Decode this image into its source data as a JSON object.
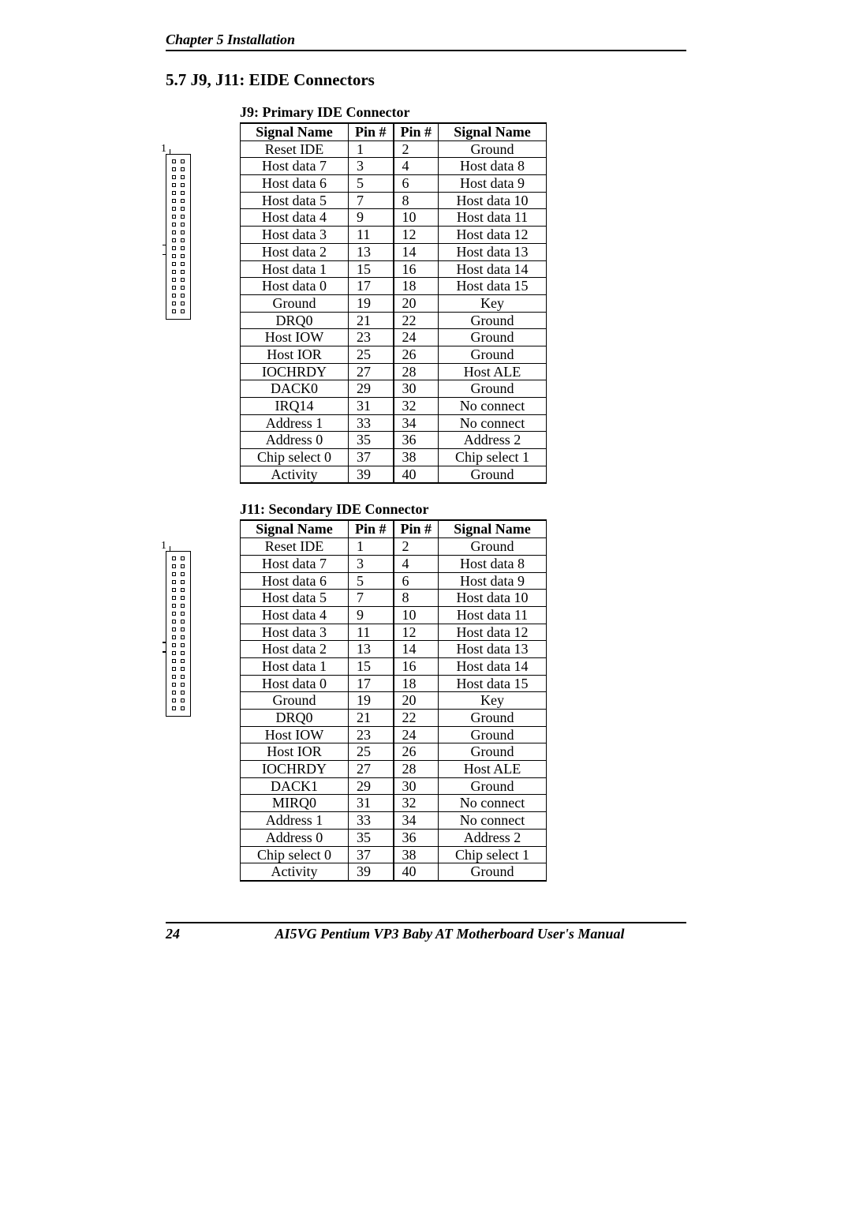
{
  "chapter_header": "Chapter 5  Installation",
  "section_title": "5.7  J9, J11: EIDE Connectors",
  "page_number": "24",
  "footer_title": "AI5VG Pentium VP3 Baby AT Motherboard User's Manual",
  "tables": {
    "j9": {
      "title": "J9: Primary IDE Connector",
      "headers": [
        "Signal Name",
        "Pin #",
        "Pin #",
        "Signal Name"
      ],
      "pin1_label": "1",
      "rows": [
        [
          "Reset IDE",
          "1",
          "2",
          "Ground"
        ],
        [
          "Host data 7",
          "3",
          "4",
          "Host data 8"
        ],
        [
          "Host data 6",
          "5",
          "6",
          "Host data 9"
        ],
        [
          "Host data 5",
          "7",
          "8",
          "Host data 10"
        ],
        [
          "Host data 4",
          "9",
          "10",
          "Host data 11"
        ],
        [
          "Host data 3",
          "11",
          "12",
          "Host data 12"
        ],
        [
          "Host data 2",
          "13",
          "14",
          "Host data 13"
        ],
        [
          "Host data 1",
          "15",
          "16",
          "Host data 14"
        ],
        [
          "Host data 0",
          "17",
          "18",
          "Host data 15"
        ],
        [
          "Ground",
          "19",
          "20",
          "Key"
        ],
        [
          "DRQ0",
          "21",
          "22",
          "Ground"
        ],
        [
          "Host IOW",
          "23",
          "24",
          "Ground"
        ],
        [
          "Host IOR",
          "25",
          "26",
          "Ground"
        ],
        [
          "IOCHRDY",
          "27",
          "28",
          "Host ALE"
        ],
        [
          "DACK0",
          "29",
          "30",
          "Ground"
        ],
        [
          "IRQ14",
          "31",
          "32",
          "No connect"
        ],
        [
          "Address 1",
          "33",
          "34",
          "No connect"
        ],
        [
          "Address 0",
          "35",
          "36",
          "Address 2"
        ],
        [
          "Chip select 0",
          "37",
          "38",
          "Chip select 1"
        ],
        [
          "Activity",
          "39",
          "40",
          "Ground"
        ]
      ]
    },
    "j11": {
      "title": "J11: Secondary IDE Connector",
      "headers": [
        "Signal Name",
        "Pin #",
        "Pin #",
        "Signal Name"
      ],
      "pin1_label": "1",
      "rows": [
        [
          "Reset IDE",
          "1",
          "2",
          "Ground"
        ],
        [
          "Host data 7",
          "3",
          "4",
          "Host data 8"
        ],
        [
          "Host data 6",
          "5",
          "6",
          "Host data 9"
        ],
        [
          "Host data 5",
          "7",
          "8",
          "Host data 10"
        ],
        [
          "Host data 4",
          "9",
          "10",
          "Host data 11"
        ],
        [
          "Host data 3",
          "11",
          "12",
          "Host data 12"
        ],
        [
          "Host data 2",
          "13",
          "14",
          "Host data 13"
        ],
        [
          "Host data 1",
          "15",
          "16",
          "Host data 14"
        ],
        [
          "Host data 0",
          "17",
          "18",
          "Host data 15"
        ],
        [
          "Ground",
          "19",
          "20",
          "Key"
        ],
        [
          "DRQ0",
          "21",
          "22",
          "Ground"
        ],
        [
          "Host IOW",
          "23",
          "24",
          "Ground"
        ],
        [
          "Host IOR",
          "25",
          "26",
          "Ground"
        ],
        [
          "IOCHRDY",
          "27",
          "28",
          "Host ALE"
        ],
        [
          "DACK1",
          "29",
          "30",
          "Ground"
        ],
        [
          "MIRQ0",
          "31",
          "32",
          "No connect"
        ],
        [
          "Address 1",
          "33",
          "34",
          "No connect"
        ],
        [
          "Address 0",
          "35",
          "36",
          "Address 2"
        ],
        [
          "Chip select 0",
          "37",
          "38",
          "Chip select 1"
        ],
        [
          "Activity",
          "39",
          "40",
          "Ground"
        ]
      ]
    }
  },
  "diagram": {
    "pin_rows": 20,
    "side_ticks": [
      9,
      10
    ]
  },
  "colors": {
    "text": "#000000",
    "background": "#ffffff",
    "border": "#000000"
  }
}
